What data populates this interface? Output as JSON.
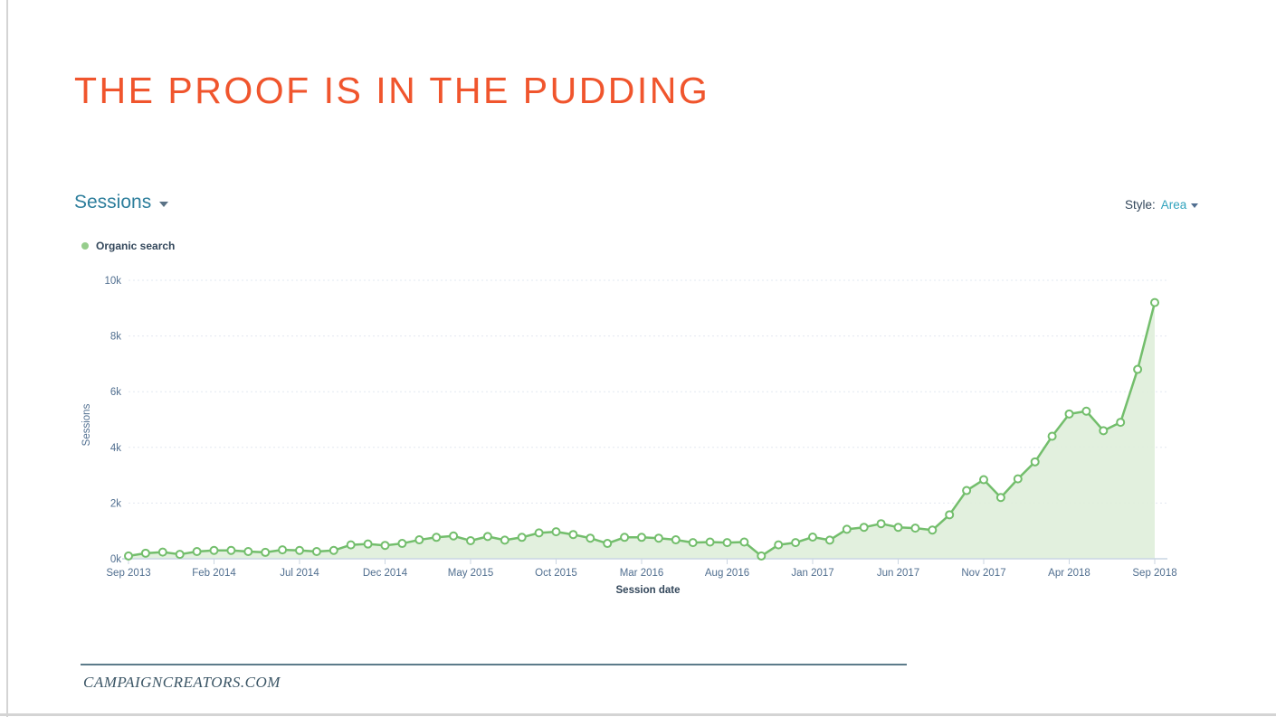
{
  "slide": {
    "title": "THE PROOF IS IN THE PUDDING",
    "footer": "CAMPAIGNCREATORS.COM"
  },
  "report": {
    "metric_label": "Sessions",
    "style_label": "Style:",
    "style_value": "Area",
    "legend": {
      "label": "Organic search"
    }
  },
  "colors": {
    "title-orange": "#F0552D",
    "metric-teal": "#2D7E9C",
    "link-teal": "#31A3BD",
    "dark-text": "#33475B",
    "axis-text": "#516F90",
    "line-green": "#73BE6C",
    "fill-green": "#DFEEDA",
    "legend-green": "#96CD8C",
    "grid": "#E2E8F0",
    "baseline": "#C9D6E3",
    "tick": "#CBD6E2",
    "footer-text": "#3C5666",
    "footer-line": "#5C7B8A",
    "slide-border": "#D4D4D4"
  },
  "chart_data": {
    "type": "area",
    "title": "Sessions",
    "xlabel": "Session date",
    "ylabel": "Sessions",
    "ylim": [
      0,
      10000
    ],
    "y_tick_labels": [
      "0k",
      "2k",
      "4k",
      "6k",
      "8k",
      "10k"
    ],
    "grid": "horizontal-dashed",
    "legend_position": "top-left",
    "x_tick_every": 5,
    "x_tick_labels": [
      "Sep 2013",
      "Feb 2014",
      "Jul 2014",
      "Dec 2014",
      "May 2015",
      "Oct 2015",
      "Mar 2016",
      "Aug 2016",
      "Jan 2017",
      "Jun 2017",
      "Nov 2017",
      "Apr 2018",
      "Sep 2018"
    ],
    "series": [
      {
        "name": "Organic search",
        "interval": "monthly",
        "values": [
          100,
          200,
          240,
          160,
          260,
          300,
          300,
          260,
          230,
          320,
          300,
          260,
          300,
          500,
          530,
          480,
          550,
          680,
          770,
          820,
          650,
          800,
          670,
          770,
          930,
          970,
          870,
          740,
          550,
          770,
          770,
          740,
          680,
          580,
          600,
          580,
          600,
          100,
          500,
          580,
          780,
          670,
          1060,
          1130,
          1260,
          1130,
          1100,
          1030,
          1580,
          2450,
          2840,
          2200,
          2870,
          3480,
          4400,
          5200,
          5300,
          4600,
          4900,
          6800,
          9200
        ]
      }
    ]
  }
}
